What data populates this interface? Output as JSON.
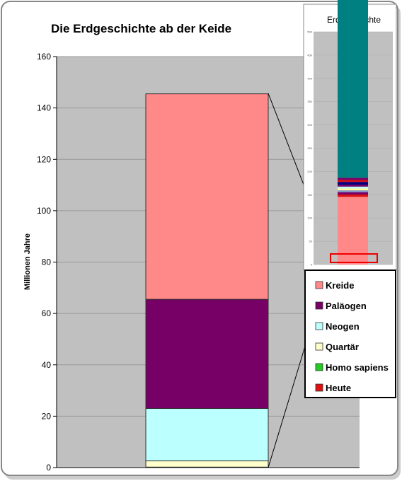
{
  "chart_data": [
    {
      "type": "bar",
      "stacked": true,
      "title": "Die Erdgeschichte ab der Keide",
      "ylabel": "Millionen Jahre",
      "xlabel": "",
      "ylim": [
        0,
        160
      ],
      "yticks": [
        0,
        20,
        40,
        60,
        80,
        100,
        120,
        140,
        160
      ],
      "grid": true,
      "legend_position": "right",
      "series": [
        {
          "name": "Heute",
          "value": 0,
          "color": "#dd1111"
        },
        {
          "name": "Homo sapiens",
          "value": 0.2,
          "color": "#22cc22"
        },
        {
          "name": "Quartär",
          "value": 2.4,
          "color": "#ffffcc"
        },
        {
          "name": "Neogen",
          "value": 20.4,
          "color": "#bbffff"
        },
        {
          "name": "Paläogen",
          "value": 42.5,
          "color": "#770066"
        },
        {
          "name": "Kreide",
          "value": 80,
          "color": "#ff8888"
        }
      ],
      "legend_order": [
        "Kreide",
        "Paläogen",
        "Neogen",
        "Quartär",
        "Homo sapiens",
        "Heute"
      ]
    },
    {
      "type": "bar",
      "stacked": true,
      "title": "Erdgeschichte",
      "ylim": [
        0,
        500
      ],
      "yticks": [
        0,
        50,
        100,
        150,
        200,
        250,
        300,
        350,
        400,
        450,
        500
      ],
      "ylabel": "",
      "grid": true,
      "series": [
        {
          "name": "",
          "value": 145.5,
          "color": "#ff8888"
        },
        {
          "name": "",
          "value": 5,
          "color": "#dd1111"
        },
        {
          "name": "",
          "value": 5,
          "color": "#770066"
        },
        {
          "name": "",
          "value": 4,
          "color": "#8899cc"
        },
        {
          "name": "",
          "value": 4,
          "color": "#ffff99"
        },
        {
          "name": "",
          "value": 4,
          "color": "#bbffff"
        },
        {
          "name": "",
          "value": 4,
          "color": "#770066"
        },
        {
          "name": "",
          "value": 6,
          "color": "#000080"
        },
        {
          "name": "",
          "value": 4,
          "color": "#dd1111"
        },
        {
          "name": "",
          "value": 5,
          "color": "#770066"
        },
        {
          "name": "",
          "value": 455.5,
          "color": "#008080"
        }
      ],
      "highlight_range": [
        0,
        23
      ],
      "highlight_color": "#ee0000"
    }
  ],
  "colors": {
    "plot_background": "#c0c0c0",
    "frame": "#888888",
    "shadow": "#cccccc"
  }
}
